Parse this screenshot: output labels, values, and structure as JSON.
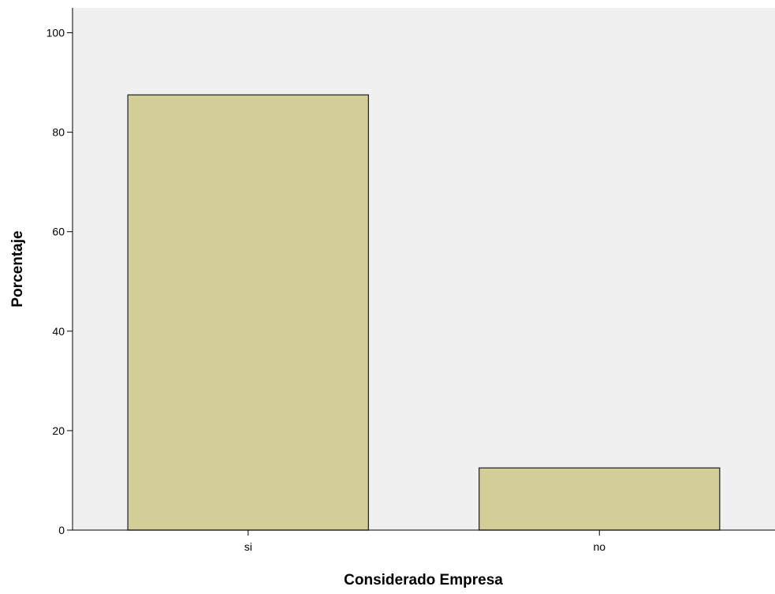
{
  "chart_data": {
    "type": "bar",
    "title": "",
    "xlabel": "Considerado Empresa",
    "ylabel": "Porcentaje",
    "categories": [
      "si",
      "no"
    ],
    "values": [
      87.5,
      12.5
    ],
    "ylim": [
      0,
      105
    ],
    "yticks": [
      "0",
      "20",
      "40",
      "60",
      "80",
      "100"
    ],
    "grid": false,
    "legend": "none",
    "colors": {
      "bar_fill": "#d3cd98",
      "bar_stroke": "#2b2b2b",
      "plot_background": "#f0f0f0",
      "axis": "#000000"
    }
  }
}
